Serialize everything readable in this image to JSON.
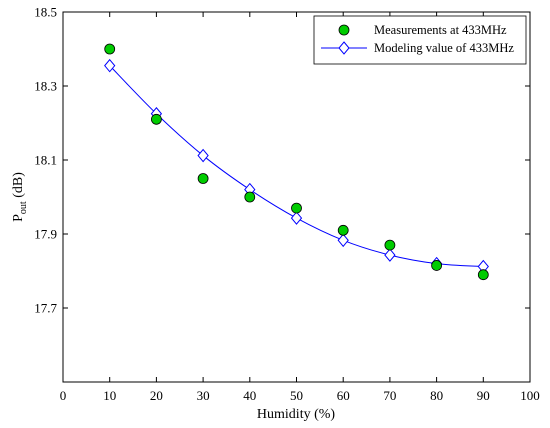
{
  "chart_data": {
    "type": "line",
    "xlabel": "Humidity (%)",
    "ylabel_main": "P",
    "ylabel_sub": "out",
    "ylabel_unit": " (dB)",
    "xlim": [
      0,
      100
    ],
    "ylim": [
      17.5,
      18.5
    ],
    "xticks": [
      0,
      10,
      20,
      30,
      40,
      50,
      60,
      70,
      80,
      90,
      100
    ],
    "yticks": [
      17.7,
      17.9,
      18.1,
      18.3,
      18.5
    ],
    "ytick_labels": [
      "17.7",
      "17.9",
      "18.1",
      "18.3",
      "18.5"
    ],
    "grid": false,
    "legend_position": "top-right",
    "series": [
      {
        "name": "Measurements at 433MHz",
        "style": "markers",
        "marker": "circle",
        "color": "#00cc00",
        "x": [
          10,
          20,
          30,
          40,
          50,
          60,
          70,
          80,
          90
        ],
        "y": [
          18.4,
          18.21,
          18.05,
          18.0,
          17.97,
          17.91,
          17.87,
          17.815,
          17.79
        ]
      },
      {
        "name": "Modeling value of 433MHz",
        "style": "line+markers",
        "marker": "diamond",
        "color": "#0000ff",
        "x": [
          10,
          20,
          30,
          40,
          50,
          60,
          70,
          80,
          90
        ],
        "y": [
          18.355,
          18.225,
          18.112,
          18.02,
          17.943,
          17.883,
          17.843,
          17.82,
          17.812
        ]
      }
    ]
  }
}
